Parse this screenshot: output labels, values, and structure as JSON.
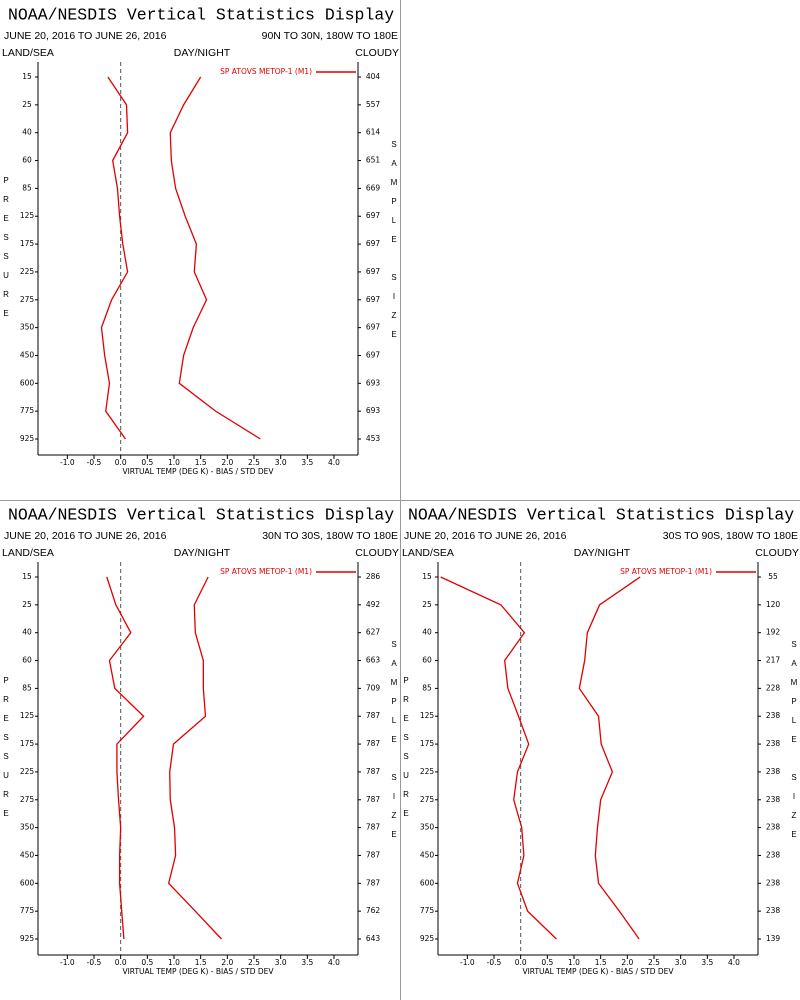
{
  "chart_data": [
    {
      "type": "line",
      "title": "NOAA/NESDIS Vertical Statistics Display",
      "subtitle": "JUNE 20, 2016 TO JUNE 26, 2016",
      "region": "90N TO 30N, 180W TO 180E",
      "header_left": "LAND/SEA",
      "header_center": "DAY/NIGHT",
      "header_right": "CLOUDY",
      "ylabel": "PRESSURE",
      "y2label": "SAMPLE SIZE",
      "xlabel": "VIRTUAL TEMP (DEG K) - BIAS / STD DEV",
      "categories": [
        15,
        25,
        40,
        60,
        85,
        125,
        175,
        225,
        275,
        350,
        450,
        600,
        775,
        925
      ],
      "sample_size": [
        404,
        557,
        614,
        651,
        669,
        697,
        697,
        697,
        697,
        697,
        697,
        693,
        693,
        453
      ],
      "series": [
        {
          "name": "SP ATOVS METOP-1 (M1)",
          "color": "#e00000",
          "values": [
            -0.24,
            0.11,
            0.13,
            -0.15,
            -0.06,
            -0.02,
            0.04,
            0.13,
            -0.17,
            -0.36,
            -0.3,
            -0.21,
            -0.28,
            0.09
          ],
          "std_dev": [
            1.5,
            1.18,
            0.93,
            0.95,
            1.03,
            1.21,
            1.42,
            1.38,
            1.61,
            1.36,
            1.18,
            1.1,
            1.78,
            2.62
          ]
        }
      ],
      "xlim": [
        -1.55,
        4.45
      ],
      "xticks": [
        {
          "value": -1,
          "label": "-1.0"
        },
        -0.5,
        {
          "value": 0,
          "label": "0.0"
        },
        0.5,
        {
          "value": 1,
          "label": "1.0"
        },
        1.5,
        {
          "value": 2,
          "label": "2.0"
        },
        2.5,
        {
          "value": 3,
          "label": "3.0"
        },
        3.5,
        {
          "value": 4,
          "label": "4.0"
        }
      ],
      "reference_x": 0
    },
    {
      "type": "line",
      "title": "NOAA/NESDIS Vertical Statistics Display",
      "subtitle": "JUNE 20, 2016 TO JUNE 26, 2016",
      "region": "30N TO 30S, 180W TO 180E",
      "header_left": "LAND/SEA",
      "header_center": "DAY/NIGHT",
      "header_right": "CLOUDY",
      "ylabel": "PRESSURE",
      "y2label": "SAMPLE SIZE",
      "xlabel": "VIRTUAL TEMP (DEG K) - BIAS / STD DEV",
      "categories": [
        15,
        25,
        40,
        60,
        85,
        125,
        175,
        225,
        275,
        350,
        450,
        600,
        775,
        925
      ],
      "sample_size": [
        286,
        492,
        627,
        663,
        709,
        787,
        787,
        787,
        787,
        787,
        787,
        787,
        762,
        643
      ],
      "series": [
        {
          "name": "SP ATOVS METOP-1 (M1)",
          "color": "#e00000",
          "values": [
            -0.26,
            -0.09,
            0.19,
            -0.21,
            -0.11,
            0.43,
            -0.07,
            -0.07,
            -0.04,
            0.0,
            -0.02,
            -0.02,
            0.02,
            0.06
          ],
          "std_dev": [
            1.64,
            1.38,
            1.4,
            1.55,
            1.55,
            1.59,
            0.99,
            0.92,
            0.93,
            1.01,
            1.03,
            0.9,
            1.4,
            1.89
          ]
        }
      ],
      "xlim": [
        -1.55,
        4.45
      ],
      "xticks": [
        {
          "value": -1,
          "label": "-1.0"
        },
        -0.5,
        {
          "value": 0,
          "label": "0.0"
        },
        0.5,
        {
          "value": 1,
          "label": "1.0"
        },
        1.5,
        {
          "value": 2,
          "label": "2.0"
        },
        2.5,
        {
          "value": 3,
          "label": "3.0"
        },
        3.5,
        {
          "value": 4,
          "label": "4.0"
        }
      ],
      "reference_x": 0
    },
    {
      "type": "line",
      "title": "NOAA/NESDIS Vertical Statistics Display",
      "subtitle": "JUNE 20, 2016 TO JUNE 26, 2016",
      "region": "30S TO 90S, 180W TO 180E",
      "header_left": "LAND/SEA",
      "header_center": "DAY/NIGHT",
      "header_right": "CLOUDY",
      "ylabel": "PRESSURE",
      "y2label": "SAMPLE SIZE",
      "xlabel": "VIRTUAL TEMP (DEG K) - BIAS / STD DEV",
      "categories": [
        15,
        25,
        40,
        60,
        85,
        125,
        175,
        225,
        275,
        350,
        450,
        600,
        775,
        925
      ],
      "sample_size": [
        55,
        120,
        192,
        217,
        228,
        238,
        238,
        238,
        238,
        238,
        238,
        238,
        238,
        139
      ],
      "series": [
        {
          "name": "SP ATOVS METOP-1 (M1)",
          "color": "#e00000",
          "values": [
            -1.5,
            -0.37,
            0.07,
            -0.3,
            -0.24,
            -0.04,
            0.15,
            -0.06,
            -0.13,
            0.02,
            0.06,
            -0.06,
            0.13,
            0.67
          ],
          "std_dev": [
            2.24,
            1.48,
            1.25,
            1.2,
            1.1,
            1.46,
            1.51,
            1.72,
            1.5,
            1.44,
            1.4,
            1.46,
            1.85,
            2.22
          ]
        }
      ],
      "xlim": [
        -1.55,
        4.45
      ],
      "xticks": [
        {
          "value": -1,
          "label": "-1.0"
        },
        -0.5,
        {
          "value": 0,
          "label": "0.0"
        },
        0.5,
        {
          "value": 1,
          "label": "1.0"
        },
        1.5,
        {
          "value": 2,
          "label": "2.0"
        },
        2.5,
        {
          "value": 3,
          "label": "3.0"
        },
        3.5,
        {
          "value": 4,
          "label": "4.0"
        }
      ],
      "reference_x": 0
    }
  ]
}
